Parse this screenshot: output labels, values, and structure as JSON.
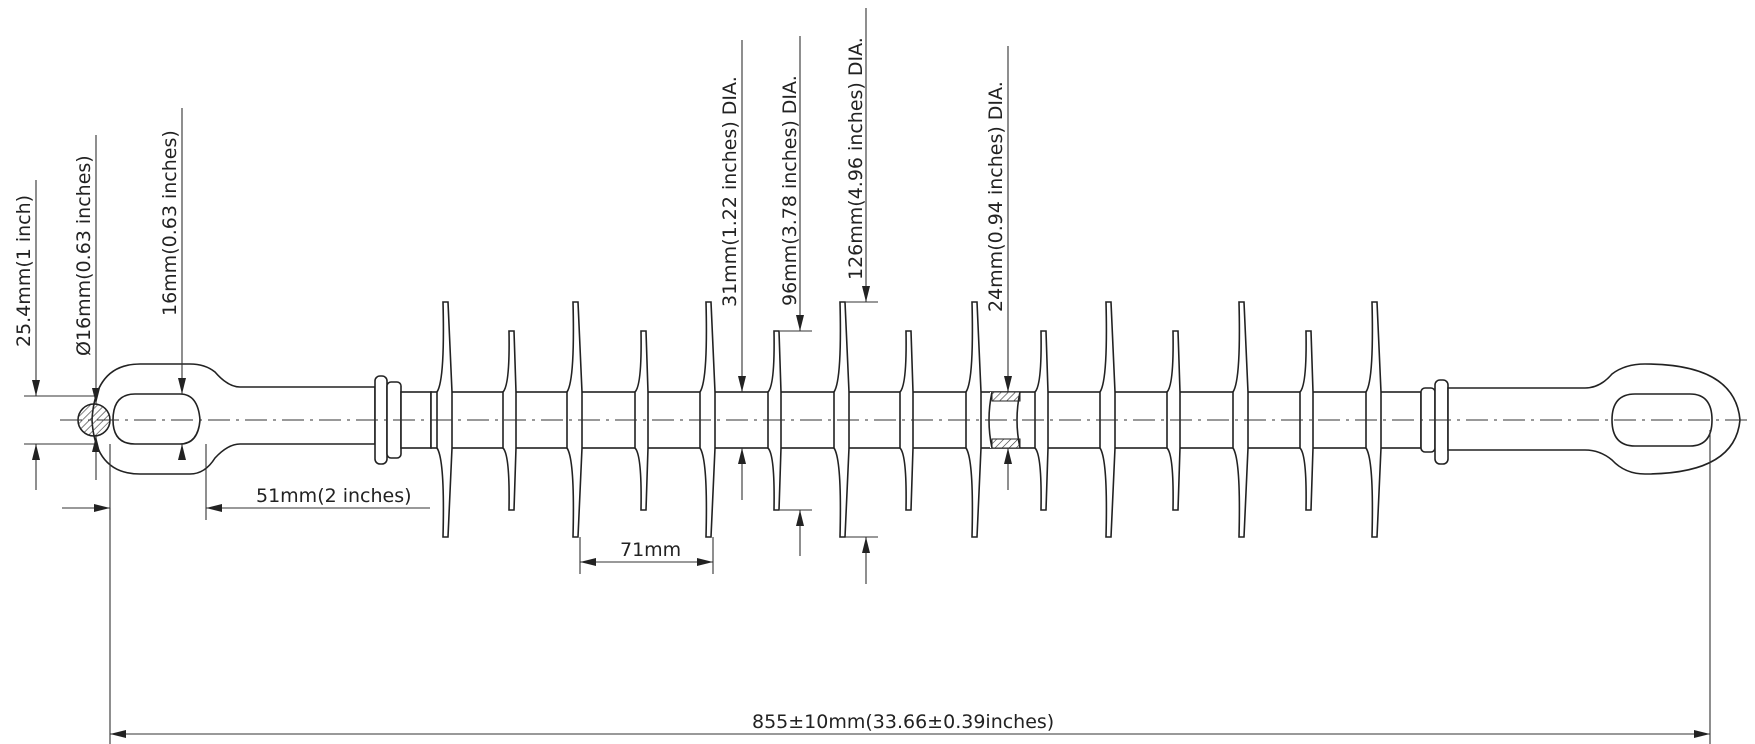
{
  "drawing": {
    "subject": "composite suspension insulator with eye ends",
    "line_color": "#222222",
    "background": "#ffffff"
  },
  "dimensions": {
    "end_thickness": "25.4mm(1 inch)",
    "pin_diameter": "Ø16mm(0.63 inches)",
    "eye_width": "16mm(0.63 inches)",
    "eye_length": "51mm(2 inches)",
    "rod_diameter": "31mm(1.22 inches) DIA.",
    "small_shed_diameter": "96mm(3.78 inches) DIA.",
    "large_shed_diameter": "126mm(4.96 inches) DIA.",
    "core_diameter": "24mm(0.94 inches) DIA.",
    "shed_spacing": "71mm",
    "overall_length": "855±10mm(33.66±0.39inches)"
  }
}
